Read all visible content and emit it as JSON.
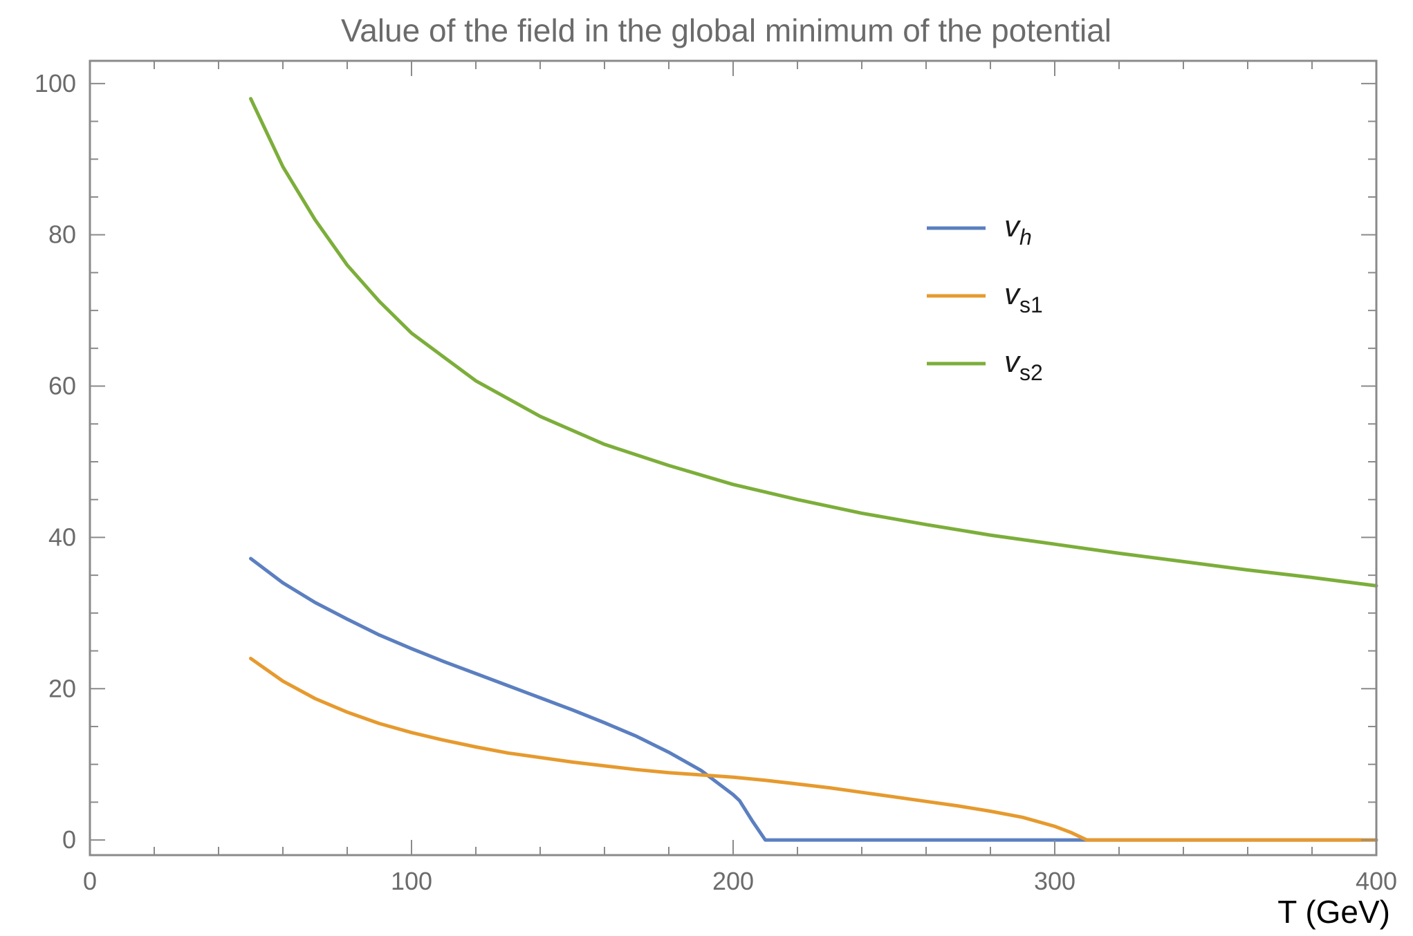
{
  "chart_data": {
    "type": "line",
    "title": "Value of the field in the global minimum of the potential",
    "xlabel": "T (GeV)",
    "ylabel": "",
    "xlim": [
      0,
      400
    ],
    "ylim": [
      -2,
      103
    ],
    "x_ticks": [
      0,
      100,
      200,
      300,
      400
    ],
    "y_ticks": [
      0,
      20,
      40,
      60,
      80,
      100
    ],
    "grid": false,
    "legend_position": "upper-right",
    "series": [
      {
        "name": "v_h",
        "label_main": "v",
        "label_sub": "h",
        "color": "#5b7fc0",
        "x": [
          50,
          60,
          70,
          80,
          90,
          100,
          110,
          120,
          130,
          140,
          150,
          160,
          170,
          180,
          190,
          200,
          202,
          206,
          210,
          220,
          240,
          260,
          280,
          300,
          320,
          340,
          360,
          380,
          400
        ],
        "y": [
          37.2,
          34.0,
          31.4,
          29.2,
          27.1,
          25.3,
          23.6,
          22.0,
          20.4,
          18.8,
          17.2,
          15.5,
          13.7,
          11.6,
          9.2,
          6.0,
          5.2,
          2.5,
          0,
          0,
          0,
          0,
          0,
          0,
          0,
          0,
          0,
          0,
          0
        ]
      },
      {
        "name": "v_s1",
        "label_main": "v",
        "label_sub": "s1",
        "color": "#e69a2e",
        "x": [
          50,
          60,
          70,
          80,
          90,
          100,
          110,
          120,
          130,
          140,
          150,
          160,
          170,
          180,
          190,
          200,
          210,
          220,
          230,
          240,
          250,
          260,
          270,
          280,
          290,
          300,
          305,
          310,
          320,
          340,
          360,
          380,
          400
        ],
        "y": [
          24.0,
          21.0,
          18.7,
          16.9,
          15.4,
          14.2,
          13.2,
          12.3,
          11.5,
          10.9,
          10.3,
          9.8,
          9.3,
          8.9,
          8.6,
          8.3,
          7.9,
          7.4,
          6.9,
          6.3,
          5.7,
          5.1,
          4.5,
          3.8,
          3.0,
          1.8,
          1.0,
          0,
          0,
          0,
          0,
          0,
          0
        ]
      },
      {
        "name": "v_s2",
        "label_main": "v",
        "label_sub": "s2",
        "color": "#7cae3a",
        "x": [
          50,
          60,
          70,
          80,
          90,
          100,
          120,
          140,
          160,
          180,
          200,
          220,
          240,
          260,
          280,
          300,
          320,
          340,
          360,
          380,
          400
        ],
        "y": [
          98.0,
          89.0,
          82.0,
          76.0,
          71.2,
          67.0,
          60.7,
          56.0,
          52.3,
          49.5,
          47.0,
          45.0,
          43.2,
          41.7,
          40.3,
          39.1,
          37.9,
          36.8,
          35.7,
          34.7,
          33.6
        ]
      }
    ]
  }
}
